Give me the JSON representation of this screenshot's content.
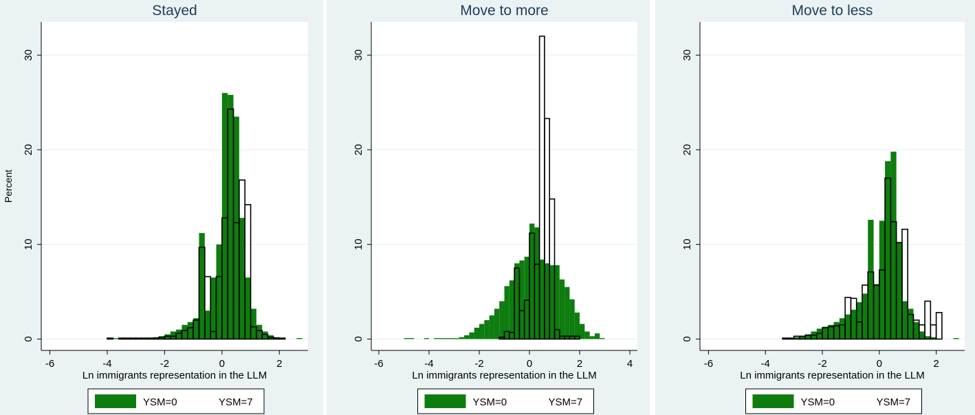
{
  "colors": {
    "outer_background": "#eaf2f3",
    "plot_background": "#ffffff",
    "grid": "#e6eeee",
    "ysm0_fill": "#0e7c0e",
    "ysm7_stroke": "#000000",
    "ysm7_fill": "#ffffff"
  },
  "chart_data": [
    {
      "type": "histogram",
      "title": "Stayed",
      "xlabel": "Ln immigrants representation in the LLM",
      "ylabel": "Percent",
      "xlim": [
        -6.3,
        3.0
      ],
      "ylim": [
        -1.2,
        33.5
      ],
      "xticks": [
        -6,
        -4,
        -2,
        0,
        2
      ],
      "yticks": [
        0,
        10,
        20,
        30
      ],
      "grid": true,
      "legend_position": "bottom",
      "legend": [
        "YSM=0",
        "YSM=7"
      ],
      "bin_width": 0.2,
      "series": [
        {
          "name": "YSM=0",
          "style": "filled",
          "bins": [
            [
              -3.8,
              0.1
            ],
            [
              -2.4,
              0.2
            ],
            [
              -2.2,
              0.3
            ],
            [
              -2.0,
              0.5
            ],
            [
              -1.8,
              0.8
            ],
            [
              -1.6,
              1.0
            ],
            [
              -1.4,
              1.5
            ],
            [
              -1.2,
              1.8
            ],
            [
              -1.0,
              2.2
            ],
            [
              -0.8,
              11.2
            ],
            [
              -0.6,
              3.0
            ],
            [
              -0.4,
              6.5
            ],
            [
              -0.2,
              10.0
            ],
            [
              0.0,
              26.0
            ],
            [
              0.2,
              25.8
            ],
            [
              0.4,
              23.5
            ],
            [
              0.6,
              12.8
            ],
            [
              0.8,
              6.5
            ],
            [
              1.0,
              3.2
            ],
            [
              1.2,
              1.5
            ],
            [
              1.4,
              0.8
            ],
            [
              1.6,
              0.4
            ],
            [
              1.8,
              0.2
            ],
            [
              2.6,
              0.1
            ]
          ]
        },
        {
          "name": "YSM=7",
          "style": "outline",
          "bins": [
            [
              -4.0,
              0.1
            ],
            [
              -3.6,
              0.1
            ],
            [
              -3.4,
              0.1
            ],
            [
              -3.2,
              0.1
            ],
            [
              -3.0,
              0.1
            ],
            [
              -2.8,
              0.1
            ],
            [
              -2.6,
              0.1
            ],
            [
              -2.4,
              0.1
            ],
            [
              -2.2,
              0.2
            ],
            [
              -2.0,
              0.3
            ],
            [
              -1.8,
              0.3
            ],
            [
              -1.6,
              0.6
            ],
            [
              -1.4,
              0.9
            ],
            [
              -1.2,
              1.2
            ],
            [
              -1.0,
              2.0
            ],
            [
              -0.8,
              9.7
            ],
            [
              -0.6,
              6.6
            ],
            [
              -0.4,
              0.8
            ],
            [
              -0.2,
              6.6
            ],
            [
              0.0,
              12.8
            ],
            [
              0.2,
              24.3
            ],
            [
              0.4,
              12.3
            ],
            [
              0.6,
              16.8
            ],
            [
              0.8,
              14.2
            ],
            [
              1.0,
              1.3
            ],
            [
              1.2,
              0.9
            ],
            [
              1.4,
              0.5
            ],
            [
              1.6,
              0.2
            ],
            [
              1.8,
              0.1
            ],
            [
              2.0,
              0.1
            ]
          ]
        }
      ]
    },
    {
      "type": "histogram",
      "title": "Move to more",
      "xlabel": "Ln immigrants representation in the LLM",
      "ylabel": "",
      "xlim": [
        -6.3,
        4.3
      ],
      "ylim": [
        -1.2,
        33.5
      ],
      "xticks": [
        -6,
        -4,
        -2,
        0,
        2,
        4
      ],
      "yticks": [
        0,
        10,
        20,
        30
      ],
      "grid": true,
      "legend_position": "bottom",
      "legend": [
        "YSM=0",
        "YSM=7"
      ],
      "bin_width": 0.2,
      "series": [
        {
          "name": "YSM=0",
          "style": "filled",
          "bins": [
            [
              -5.0,
              0.1
            ],
            [
              -4.8,
              0.1
            ],
            [
              -4.2,
              0.1
            ],
            [
              -3.8,
              0.1
            ],
            [
              -3.6,
              0.1
            ],
            [
              -3.4,
              0.1
            ],
            [
              -3.2,
              0.1
            ],
            [
              -3.0,
              0.1
            ],
            [
              -2.8,
              0.2
            ],
            [
              -2.6,
              0.4
            ],
            [
              -2.4,
              0.7
            ],
            [
              -2.2,
              1.2
            ],
            [
              -2.0,
              1.6
            ],
            [
              -1.8,
              2.0
            ],
            [
              -1.6,
              2.5
            ],
            [
              -1.4,
              3.2
            ],
            [
              -1.2,
              4.0
            ],
            [
              -1.0,
              5.6
            ],
            [
              -0.8,
              6.2
            ],
            [
              -0.6,
              8.0
            ],
            [
              -0.4,
              8.3
            ],
            [
              -0.2,
              8.7
            ],
            [
              0.0,
              12.2
            ],
            [
              0.2,
              11.8
            ],
            [
              0.4,
              8.4
            ],
            [
              0.6,
              8.0
            ],
            [
              0.8,
              7.8
            ],
            [
              1.0,
              7.8
            ],
            [
              1.2,
              6.3
            ],
            [
              1.4,
              5.5
            ],
            [
              1.6,
              4.2
            ],
            [
              1.8,
              2.8
            ],
            [
              2.0,
              1.6
            ],
            [
              2.2,
              0.8
            ],
            [
              2.4,
              0.3
            ],
            [
              2.6,
              0.6
            ],
            [
              2.8,
              0.1
            ]
          ]
        },
        {
          "name": "YSM=7",
          "style": "outline",
          "bins": [
            [
              -1.2,
              0.2
            ],
            [
              -1.0,
              0.8
            ],
            [
              -0.8,
              0.7
            ],
            [
              -0.6,
              7.5
            ],
            [
              -0.4,
              3.0
            ],
            [
              -0.2,
              4.1
            ],
            [
              0.0,
              11.2
            ],
            [
              0.2,
              7.9
            ],
            [
              0.4,
              32.0
            ],
            [
              0.6,
              23.3
            ],
            [
              0.8,
              14.8
            ],
            [
              1.0,
              1.0
            ],
            [
              1.2,
              0.3
            ],
            [
              1.4,
              0.3
            ],
            [
              1.6,
              0.3
            ],
            [
              1.8,
              0.3
            ]
          ]
        }
      ]
    },
    {
      "type": "histogram",
      "title": "Move to less",
      "xlabel": "Ln immigrants representation in the LLM",
      "ylabel": "",
      "xlim": [
        -6.3,
        3.0
      ],
      "ylim": [
        -1.2,
        33.5
      ],
      "xticks": [
        -6,
        -4,
        -2,
        0,
        2
      ],
      "yticks": [
        0,
        10,
        20,
        30
      ],
      "grid": true,
      "legend_position": "bottom",
      "legend": [
        "YSM=0",
        "YSM=7"
      ],
      "bin_width": 0.2,
      "series": [
        {
          "name": "YSM=0",
          "style": "filled",
          "bins": [
            [
              -3.4,
              0.1
            ],
            [
              -3.2,
              0.1
            ],
            [
              -3.0,
              0.2
            ],
            [
              -2.8,
              0.3
            ],
            [
              -2.6,
              0.5
            ],
            [
              -2.4,
              0.8
            ],
            [
              -2.2,
              1.1
            ],
            [
              -2.0,
              1.3
            ],
            [
              -1.8,
              1.5
            ],
            [
              -1.6,
              1.8
            ],
            [
              -1.4,
              2.2
            ],
            [
              -1.2,
              2.6
            ],
            [
              -1.0,
              3.1
            ],
            [
              -0.8,
              3.9
            ],
            [
              -0.6,
              4.8
            ],
            [
              -0.4,
              12.6
            ],
            [
              -0.2,
              5.8
            ],
            [
              0.0,
              12.5
            ],
            [
              0.2,
              18.8
            ],
            [
              0.4,
              19.8
            ],
            [
              0.6,
              10.2
            ],
            [
              0.8,
              4.0
            ],
            [
              1.0,
              3.2
            ],
            [
              1.2,
              1.8
            ],
            [
              1.4,
              0.8
            ],
            [
              1.6,
              0.3
            ],
            [
              1.8,
              0.2
            ],
            [
              2.6,
              0.1
            ]
          ]
        },
        {
          "name": "YSM=7",
          "style": "outline",
          "bins": [
            [
              -3.4,
              0.1
            ],
            [
              -3.2,
              0.1
            ],
            [
              -3.0,
              0.3
            ],
            [
              -2.8,
              0.3
            ],
            [
              -2.6,
              0.4
            ],
            [
              -2.4,
              0.4
            ],
            [
              -2.2,
              0.6
            ],
            [
              -2.0,
              1.2
            ],
            [
              -1.8,
              1.3
            ],
            [
              -1.6,
              1.4
            ],
            [
              -1.4,
              1.5
            ],
            [
              -1.2,
              4.4
            ],
            [
              -1.0,
              4.3
            ],
            [
              -0.8,
              1.8
            ],
            [
              -0.6,
              5.7
            ],
            [
              -0.4,
              7.1
            ],
            [
              -0.2,
              5.7
            ],
            [
              0.0,
              7.3
            ],
            [
              0.2,
              17.0
            ],
            [
              0.4,
              12.4
            ],
            [
              0.6,
              10.2
            ],
            [
              0.8,
              11.6
            ],
            [
              1.0,
              2.6
            ],
            [
              1.2,
              2.0
            ],
            [
              1.4,
              1.5
            ],
            [
              1.6,
              4.0
            ],
            [
              1.8,
              1.5
            ],
            [
              2.0,
              2.8
            ]
          ]
        }
      ]
    }
  ]
}
